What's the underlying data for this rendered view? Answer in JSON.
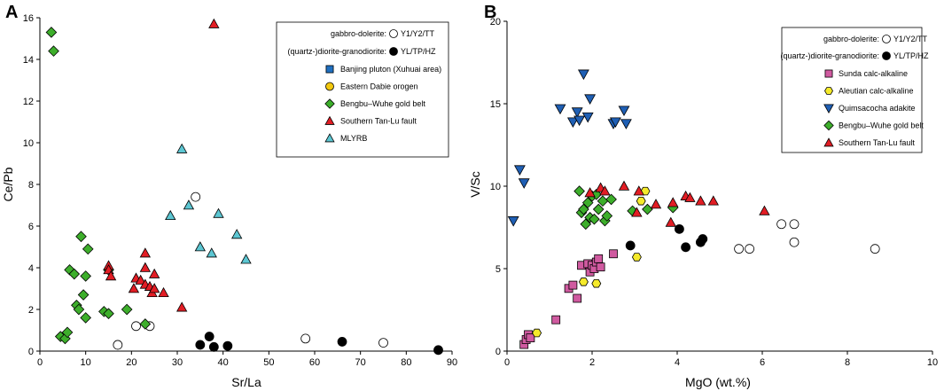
{
  "panel_a_label": "A",
  "panel_b_label": "B",
  "chart_data": [
    {
      "id": "A",
      "type": "scatter",
      "title": "",
      "xlabel": "Sr/La",
      "ylabel": "Ce/Pb",
      "xlim": [
        0,
        90
      ],
      "ylim": [
        0,
        16
      ],
      "xticks": [
        0,
        10,
        20,
        30,
        40,
        50,
        60,
        70,
        80,
        90
      ],
      "yticks": [
        0,
        2,
        4,
        6,
        8,
        10,
        12,
        14,
        16
      ],
      "xtick_labels": [
        "0",
        "10",
        "20",
        "30",
        "40",
        "50",
        "60",
        "70",
        "80",
        "90"
      ],
      "ytick_labels": [
        "0",
        "2",
        "4",
        "6",
        "8",
        "10",
        "12",
        "14",
        "16"
      ],
      "legend_position": "top-right",
      "legend_rows": [
        {
          "label": "gabbro-dolerite:",
          "marker_label": "Y1/Y2/TT",
          "series": "gd"
        },
        {
          "label": "(quartz-)diorite-granodiorite:",
          "marker_label": "YL/TP/HZ",
          "series": "dg"
        }
      ],
      "series": [
        {
          "id": "gd",
          "name": "Y1/Y2/TT",
          "marker": "circle",
          "color": "#ffffff",
          "points": [
            [
              17,
              0.3
            ],
            [
              21,
              1.2
            ],
            [
              24,
              1.2
            ],
            [
              34,
              7.4
            ],
            [
              58,
              0.6
            ],
            [
              75,
              0.4
            ]
          ]
        },
        {
          "id": "dg",
          "name": "YL/TP/HZ",
          "marker": "circle",
          "color": "#000000",
          "points": [
            [
              35,
              0.3
            ],
            [
              37,
              0.7
            ],
            [
              38,
              0.2
            ],
            [
              41,
              0.25
            ],
            [
              66,
              0.45
            ],
            [
              87,
              0.05
            ]
          ]
        },
        {
          "id": "bp",
          "name": "Banjing pluton (Xuhuai area)",
          "marker": "square",
          "color": "#1f6fc0",
          "points": []
        },
        {
          "id": "ed",
          "name": "Eastern Dabie orogen",
          "marker": "circle",
          "color": "#f2c80f",
          "points": []
        },
        {
          "id": "bw",
          "name": "Bengbu–Wuhe gold belt",
          "marker": "diamond",
          "color": "#3dae2b",
          "points": [
            [
              2.5,
              15.3
            ],
            [
              3,
              14.4
            ],
            [
              4.5,
              0.7
            ],
            [
              5.5,
              0.6
            ],
            [
              6,
              0.9
            ],
            [
              6.5,
              3.9
            ],
            [
              7.5,
              3.7
            ],
            [
              8,
              2.2
            ],
            [
              8.5,
              2
            ],
            [
              9,
              5.5
            ],
            [
              9.5,
              2.7
            ],
            [
              10,
              1.6
            ],
            [
              10,
              3.6
            ],
            [
              10.5,
              4.9
            ],
            [
              14,
              1.9
            ],
            [
              15,
              1.8
            ],
            [
              15,
              3.9
            ],
            [
              19,
              2
            ],
            [
              23,
              1.3
            ]
          ]
        },
        {
          "id": "st",
          "name": "Southern Tan-Lu fault",
          "marker": "triangle-up",
          "color": "#e21d24",
          "points": [
            [
              15,
              4.1
            ],
            [
              15,
              3.9
            ],
            [
              15.5,
              3.6
            ],
            [
              20.5,
              3
            ],
            [
              21,
              3.5
            ],
            [
              22,
              3.4
            ],
            [
              23,
              4.7
            ],
            [
              23,
              4
            ],
            [
              23,
              3.2
            ],
            [
              24,
              3.1
            ],
            [
              24.5,
              2.8
            ],
            [
              25,
              3.7
            ],
            [
              25,
              3
            ],
            [
              27,
              2.8
            ],
            [
              31,
              2.1
            ],
            [
              38,
              15.7
            ]
          ]
        },
        {
          "id": "ml",
          "name": "MLYRB",
          "marker": "triangle-up",
          "color": "#5cc6d2",
          "points": [
            [
              28.5,
              6.5
            ],
            [
              31,
              9.7
            ],
            [
              32.5,
              7
            ],
            [
              35,
              5
            ],
            [
              37.5,
              4.7
            ],
            [
              39,
              6.6
            ],
            [
              43,
              5.6
            ],
            [
              45,
              4.4
            ]
          ]
        }
      ]
    },
    {
      "id": "B",
      "type": "scatter",
      "title": "",
      "xlabel": "MgO (wt.%)",
      "ylabel": "V/Sc",
      "xlim": [
        0,
        10
      ],
      "ylim": [
        0,
        20
      ],
      "xticks": [
        0,
        2,
        4,
        6,
        8,
        10
      ],
      "yticks": [
        0,
        5,
        10,
        15,
        20
      ],
      "xtick_labels": [
        "0",
        "2",
        "4",
        "6",
        "8",
        "10"
      ],
      "ytick_labels": [
        "0",
        "5",
        "10",
        "15",
        "20"
      ],
      "legend_position": "top-right",
      "legend_rows": [
        {
          "label": "gabbro-dolerite:",
          "marker_label": "Y1/Y2/TT",
          "series": "gd"
        },
        {
          "label": "(quartz-)diorite-granodiorite:",
          "marker_label": "YL/TP/HZ",
          "series": "dg"
        }
      ],
      "series": [
        {
          "id": "gd",
          "name": "Y1/Y2/TT",
          "marker": "circle",
          "color": "#ffffff",
          "points": [
            [
              5.45,
              6.2
            ],
            [
              5.7,
              6.2
            ],
            [
              6.45,
              7.7
            ],
            [
              6.75,
              7.7
            ],
            [
              6.75,
              6.6
            ],
            [
              8.65,
              6.2
            ]
          ]
        },
        {
          "id": "dg",
          "name": "YL/TP/HZ",
          "marker": "circle",
          "color": "#000000",
          "points": [
            [
              2.9,
              6.4
            ],
            [
              4.05,
              7.4
            ],
            [
              4.2,
              6.3
            ],
            [
              4.55,
              6.6
            ],
            [
              4.6,
              6.8
            ]
          ]
        },
        {
          "id": "sc",
          "name": "Sunda calc-alkaline",
          "marker": "square",
          "color": "#d05aa0",
          "points": [
            [
              0.4,
              0.4
            ],
            [
              0.45,
              0.7
            ],
            [
              0.5,
              1
            ],
            [
              0.55,
              0.8
            ],
            [
              1.15,
              1.9
            ],
            [
              1.45,
              3.8
            ],
            [
              1.55,
              4
            ],
            [
              1.65,
              3.2
            ],
            [
              1.75,
              5.2
            ],
            [
              1.9,
              5.3
            ],
            [
              1.95,
              4.8
            ],
            [
              2,
              5.2
            ],
            [
              2.05,
              5
            ],
            [
              2.1,
              5.4
            ],
            [
              2.15,
              5.6
            ],
            [
              2.2,
              5.1
            ],
            [
              2.5,
              5.9
            ]
          ]
        },
        {
          "id": "ac",
          "name": "Aleutian calc-alkaline",
          "marker": "hexagon",
          "color": "#f5ea2a",
          "points": [
            [
              0.7,
              1.1
            ],
            [
              1.8,
              4.2
            ],
            [
              2.1,
              4.1
            ],
            [
              3.05,
              5.7
            ],
            [
              3.15,
              9.1
            ],
            [
              3.25,
              9.7
            ]
          ]
        },
        {
          "id": "qa",
          "name": "Quimsacocha adakite",
          "marker": "triangle-down",
          "color": "#1f5fb4",
          "points": [
            [
              0.15,
              7.9
            ],
            [
              0.3,
              11
            ],
            [
              0.4,
              10.2
            ],
            [
              1.25,
              14.7
            ],
            [
              1.55,
              13.9
            ],
            [
              1.65,
              14.5
            ],
            [
              1.7,
              14
            ],
            [
              1.8,
              16.8
            ],
            [
              1.9,
              14.2
            ],
            [
              1.95,
              15.3
            ],
            [
              2.5,
              13.8
            ],
            [
              2.55,
              13.9
            ],
            [
              2.75,
              14.6
            ],
            [
              2.8,
              13.8
            ]
          ]
        },
        {
          "id": "bw",
          "name": "Bengbu–Wuhe gold belt",
          "marker": "diamond",
          "color": "#3dae2b",
          "points": [
            [
              1.7,
              9.7
            ],
            [
              1.75,
              8.4
            ],
            [
              1.8,
              8.6
            ],
            [
              1.85,
              7.7
            ],
            [
              1.9,
              9
            ],
            [
              1.95,
              8.1
            ],
            [
              2,
              9.4
            ],
            [
              2.05,
              8
            ],
            [
              2.1,
              9.5
            ],
            [
              2.15,
              8.6
            ],
            [
              2.25,
              9.1
            ],
            [
              2.3,
              7.9
            ],
            [
              2.35,
              8.2
            ],
            [
              2.45,
              9.2
            ],
            [
              2.95,
              8.5
            ],
            [
              3.3,
              8.6
            ],
            [
              3.9,
              8.7
            ]
          ]
        },
        {
          "id": "st",
          "name": "Southern Tan-Lu fault",
          "marker": "triangle-up",
          "color": "#e21d24",
          "points": [
            [
              1.95,
              9.6
            ],
            [
              2.2,
              9.9
            ],
            [
              2.3,
              9.7
            ],
            [
              2.75,
              10
            ],
            [
              3.05,
              8.4
            ],
            [
              3.1,
              9.7
            ],
            [
              3.5,
              8.9
            ],
            [
              3.85,
              7.8
            ],
            [
              3.9,
              9
            ],
            [
              4.2,
              9.4
            ],
            [
              4.3,
              9.3
            ],
            [
              4.55,
              9.1
            ],
            [
              4.85,
              9.1
            ],
            [
              6.05,
              8.5
            ]
          ]
        }
      ]
    }
  ]
}
